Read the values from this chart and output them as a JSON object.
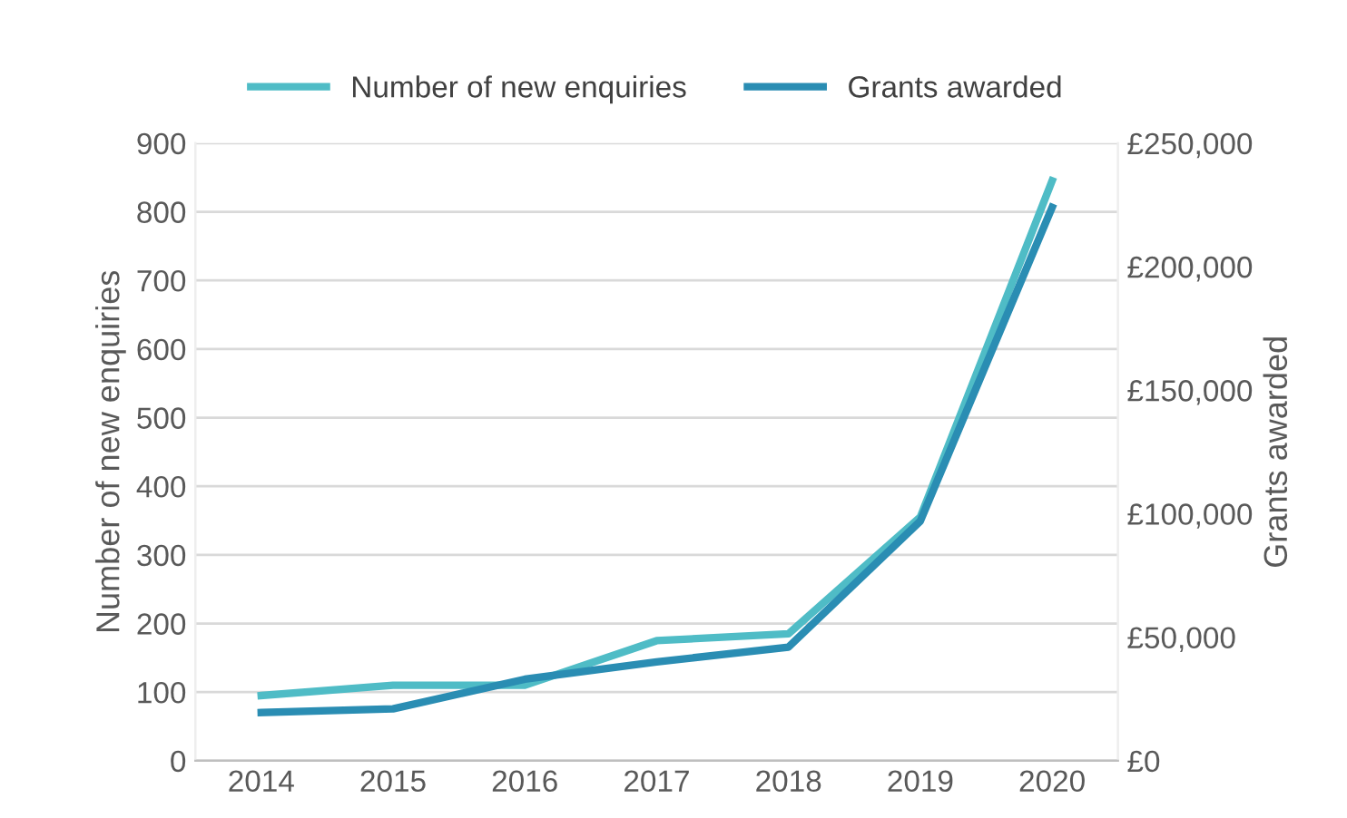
{
  "chart_data": {
    "type": "line",
    "categories": [
      "2014",
      "2015",
      "2016",
      "2017",
      "2018",
      "2019",
      "2020"
    ],
    "series": [
      {
        "name": "Number of new enquiries",
        "color": "#4fbcc6",
        "values": [
          95,
          110,
          110,
          175,
          185,
          355,
          845
        ]
      },
      {
        "name": "Grants awarded",
        "color": "#2a8db3",
        "axis": "y2",
        "values": [
          19500,
          21000,
          33000,
          40000,
          46000,
          97000,
          224000
        ]
      }
    ],
    "ylabel": "Number of new enquiries",
    "y2label": "Grants awarded",
    "ylim": [
      0,
      900
    ],
    "yticks": [
      0,
      100,
      200,
      300,
      400,
      500,
      600,
      700,
      800,
      900
    ],
    "y2lim": [
      0,
      250000
    ],
    "y2ticks": [
      {
        "value": 0,
        "label": "£0"
      },
      {
        "value": 50000,
        "label": "£50,000"
      },
      {
        "value": 100000,
        "label": "£100,000"
      },
      {
        "value": 150000,
        "label": "£150,000"
      },
      {
        "value": 200000,
        "label": "£200,000"
      },
      {
        "value": 250000,
        "label": "£250,000"
      }
    ],
    "grid": "y",
    "legend": "top",
    "marker": "none",
    "line_style": "solid"
  }
}
